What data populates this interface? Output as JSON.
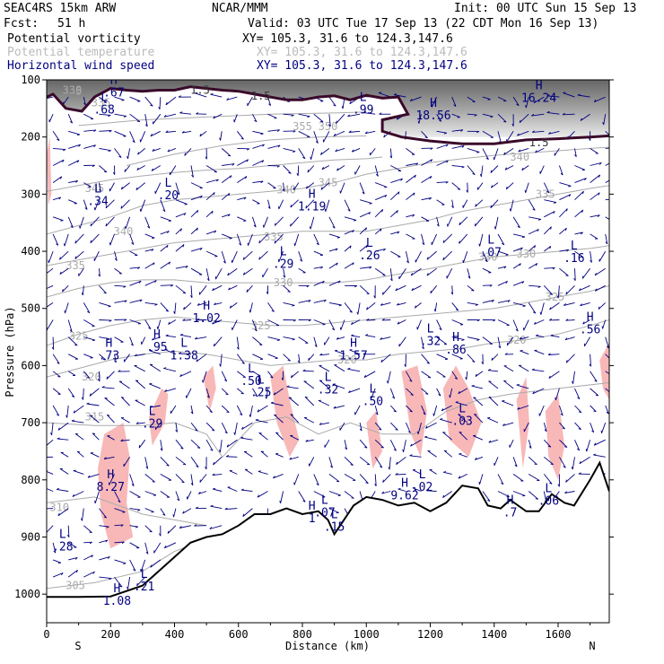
{
  "header": {
    "model": "SEAC4RS 15km ARW",
    "org": "NCAR/MMM",
    "init": "Init: 00 UTC Sun 15 Sep 13",
    "fcst_label": "Fcst:",
    "fcst_value": "51 h",
    "valid": "Valid: 03 UTC Tue 17 Sep 13 (22 CDT Mon 16 Sep 13)"
  },
  "legend": [
    {
      "name": "Potential vorticity",
      "xy": "XY= 105.3, 31.6 to 124.3,147.6",
      "color": "#000000"
    },
    {
      "name": "Potential temperature",
      "xy": "XY= 105.3, 31.6 to 124.3,147.6",
      "color": "#bbbbbb"
    },
    {
      "name": "Horizontal wind speed",
      "xy": "XY= 105.3, 31.6 to 124.3,147.6",
      "color": "#000080"
    }
  ],
  "chart_data": {
    "type": "cross-section",
    "xlabel": "Distance (km)",
    "ylabel": "Pressure (hPa)",
    "xlim": [
      0,
      1760
    ],
    "ylim": [
      1050,
      100
    ],
    "x_ticks": [
      0,
      200,
      400,
      600,
      800,
      1000,
      1200,
      1400,
      1600
    ],
    "y_ticks": [
      100,
      200,
      300,
      400,
      500,
      600,
      700,
      800,
      900,
      1000
    ],
    "end_labels": {
      "left": "S",
      "right": "N"
    },
    "terrain": [
      [
        0,
        1005
      ],
      [
        100,
        1005
      ],
      [
        200,
        1004
      ],
      [
        300,
        985
      ],
      [
        400,
        935
      ],
      [
        450,
        910
      ],
      [
        500,
        900
      ],
      [
        550,
        895
      ],
      [
        600,
        880
      ],
      [
        650,
        860
      ],
      [
        700,
        860
      ],
      [
        750,
        850
      ],
      [
        800,
        860
      ],
      [
        850,
        855
      ],
      [
        880,
        870
      ],
      [
        900,
        895
      ],
      [
        930,
        870
      ],
      [
        960,
        845
      ],
      [
        1000,
        830
      ],
      [
        1050,
        835
      ],
      [
        1100,
        845
      ],
      [
        1150,
        840
      ],
      [
        1200,
        855
      ],
      [
        1250,
        840
      ],
      [
        1300,
        810
      ],
      [
        1350,
        815
      ],
      [
        1380,
        845
      ],
      [
        1420,
        850
      ],
      [
        1450,
        835
      ],
      [
        1500,
        855
      ],
      [
        1540,
        855
      ],
      [
        1580,
        825
      ],
      [
        1620,
        840
      ],
      [
        1650,
        845
      ],
      [
        1700,
        800
      ],
      [
        1730,
        770
      ],
      [
        1760,
        820
      ]
    ],
    "pv_1_5_contour": [
      [
        0,
        130
      ],
      [
        20,
        125
      ],
      [
        60,
        150
      ],
      [
        110,
        155
      ],
      [
        150,
        130
      ],
      [
        200,
        115
      ],
      [
        250,
        118
      ],
      [
        300,
        120
      ],
      [
        350,
        118
      ],
      [
        400,
        118
      ],
      [
        450,
        112
      ],
      [
        500,
        115
      ],
      [
        550,
        118
      ],
      [
        600,
        120
      ],
      [
        650,
        125
      ],
      [
        700,
        130
      ],
      [
        750,
        135
      ],
      [
        800,
        135
      ],
      [
        850,
        130
      ],
      [
        900,
        128
      ],
      [
        950,
        135
      ],
      [
        1000,
        127
      ],
      [
        1050,
        132
      ],
      [
        1100,
        130
      ],
      [
        1130,
        160
      ],
      [
        1050,
        170
      ],
      [
        1050,
        190
      ],
      [
        1110,
        200
      ],
      [
        1200,
        207
      ],
      [
        1300,
        212
      ],
      [
        1400,
        212
      ],
      [
        1500,
        205
      ],
      [
        1600,
        203
      ],
      [
        1700,
        200
      ],
      [
        1760,
        198
      ]
    ],
    "pv_1_5_labels": [
      {
        "x": 480,
        "p": 118,
        "text": "1.5"
      },
      {
        "x": 670,
        "p": 128,
        "text": "1.5"
      },
      {
        "x": 1540,
        "p": 210,
        "text": "1.5"
      }
    ],
    "theta_contours": [
      {
        "value": 305,
        "points": [
          [
            0,
            990
          ],
          [
            150,
            980
          ],
          [
            300,
            960
          ],
          [
            400,
            925
          ],
          [
            450,
            915
          ]
        ]
      },
      {
        "value": 310,
        "points": [
          [
            0,
            840
          ],
          [
            150,
            830
          ],
          [
            300,
            860
          ],
          [
            400,
            870
          ],
          [
            500,
            880
          ]
        ]
      },
      {
        "value": 315,
        "points": [
          [
            0,
            700
          ],
          [
            150,
            705
          ],
          [
            300,
            705
          ],
          [
            400,
            700
          ],
          [
            500,
            720
          ],
          [
            550,
            760
          ],
          [
            650,
            700
          ],
          [
            750,
            690
          ],
          [
            850,
            720
          ],
          [
            950,
            700
          ],
          [
            1050,
            720
          ],
          [
            1150,
            720
          ],
          [
            1250,
            680
          ],
          [
            1350,
            660
          ],
          [
            1450,
            650
          ],
          [
            1600,
            640
          ],
          [
            1760,
            630
          ]
        ]
      },
      {
        "value": 320,
        "points": [
          [
            0,
            620
          ],
          [
            100,
            605
          ],
          [
            200,
            590
          ],
          [
            300,
            580
          ],
          [
            400,
            575
          ],
          [
            500,
            580
          ],
          [
            600,
            590
          ],
          [
            700,
            600
          ],
          [
            800,
            595
          ],
          [
            900,
            590
          ],
          [
            1000,
            590
          ],
          [
            1100,
            580
          ],
          [
            1200,
            575
          ],
          [
            1300,
            570
          ],
          [
            1400,
            560
          ],
          [
            1500,
            555
          ],
          [
            1600,
            545
          ],
          [
            1700,
            530
          ],
          [
            1760,
            520
          ]
        ]
      },
      {
        "value": 325,
        "points": [
          [
            0,
            565
          ],
          [
            100,
            545
          ],
          [
            200,
            530
          ],
          [
            300,
            520
          ],
          [
            400,
            515
          ],
          [
            500,
            520
          ],
          [
            600,
            525
          ],
          [
            700,
            530
          ],
          [
            800,
            530
          ],
          [
            900,
            525
          ],
          [
            1000,
            520
          ],
          [
            1100,
            515
          ],
          [
            1200,
            510
          ],
          [
            1300,
            505
          ],
          [
            1400,
            500
          ],
          [
            1500,
            490
          ],
          [
            1600,
            480
          ],
          [
            1700,
            470
          ],
          [
            1760,
            460
          ]
        ]
      },
      {
        "value": 330,
        "points": [
          [
            0,
            480
          ],
          [
            100,
            465
          ],
          [
            200,
            455
          ],
          [
            300,
            450
          ],
          [
            400,
            450
          ],
          [
            500,
            455
          ],
          [
            600,
            455
          ],
          [
            700,
            455
          ],
          [
            800,
            455
          ],
          [
            900,
            455
          ],
          [
            1000,
            450
          ],
          [
            1100,
            440
          ],
          [
            1200,
            430
          ],
          [
            1300,
            420
          ],
          [
            1400,
            410
          ],
          [
            1500,
            405
          ],
          [
            1600,
            400
          ],
          [
            1700,
            395
          ],
          [
            1760,
            390
          ]
        ]
      },
      {
        "value": 335,
        "points": [
          [
            0,
            425
          ],
          [
            100,
            415
          ],
          [
            200,
            405
          ],
          [
            300,
            395
          ],
          [
            400,
            385
          ],
          [
            500,
            380
          ],
          [
            600,
            375
          ],
          [
            700,
            370
          ],
          [
            800,
            365
          ],
          [
            900,
            365
          ],
          [
            1000,
            365
          ],
          [
            1100,
            355
          ],
          [
            1200,
            345
          ],
          [
            1300,
            330
          ],
          [
            1400,
            320
          ],
          [
            1500,
            310
          ],
          [
            1600,
            300
          ],
          [
            1700,
            290
          ],
          [
            1760,
            285
          ]
        ]
      },
      {
        "value": 340,
        "points": [
          [
            0,
            370
          ],
          [
            100,
            355
          ],
          [
            200,
            340
          ],
          [
            300,
            320
          ],
          [
            400,
            310
          ],
          [
            500,
            305
          ],
          [
            600,
            300
          ],
          [
            700,
            295
          ],
          [
            800,
            290
          ],
          [
            900,
            280
          ],
          [
            1000,
            265
          ],
          [
            1100,
            255
          ],
          [
            1200,
            245
          ],
          [
            1300,
            238
          ],
          [
            1400,
            232
          ],
          [
            1500,
            228
          ],
          [
            1600,
            224
          ],
          [
            1700,
            220
          ],
          [
            1760,
            218
          ]
        ]
      },
      {
        "value": 345,
        "points": [
          [
            0,
            295
          ],
          [
            100,
            285
          ],
          [
            200,
            275
          ],
          [
            300,
            268
          ],
          [
            400,
            262
          ],
          [
            500,
            258
          ],
          [
            600,
            255
          ],
          [
            700,
            250
          ],
          [
            800,
            245
          ],
          [
            900,
            240
          ],
          [
            1000,
            238
          ],
          [
            1050,
            235
          ]
        ]
      },
      {
        "value": 350,
        "points": [
          [
            250,
            250
          ],
          [
            400,
            230
          ],
          [
            550,
            215
          ],
          [
            700,
            205
          ],
          [
            850,
            200
          ],
          [
            1000,
            198
          ]
        ]
      },
      {
        "value": 355,
        "points": [
          [
            100,
            180
          ],
          [
            300,
            170
          ],
          [
            500,
            165
          ],
          [
            700,
            160
          ],
          [
            900,
            158
          ],
          [
            1000,
            156
          ]
        ]
      }
    ],
    "theta_labels": [
      {
        "x": 90,
        "p": 985,
        "text": "305"
      },
      {
        "x": 40,
        "p": 848,
        "text": "310"
      },
      {
        "x": 150,
        "p": 690,
        "text": "315"
      },
      {
        "x": 140,
        "p": 620,
        "text": "320"
      },
      {
        "x": 100,
        "p": 548,
        "text": "325"
      },
      {
        "x": 1590,
        "p": 480,
        "text": "325"
      },
      {
        "x": 1470,
        "p": 555,
        "text": "320"
      },
      {
        "x": 940,
        "p": 590,
        "text": "320"
      },
      {
        "x": 670,
        "p": 530,
        "text": "325"
      },
      {
        "x": 740,
        "p": 455,
        "text": "330"
      },
      {
        "x": 1380,
        "p": 410,
        "text": "330"
      },
      {
        "x": 1500,
        "p": 405,
        "text": "330"
      },
      {
        "x": 880,
        "p": 280,
        "text": "345"
      },
      {
        "x": 90,
        "p": 425,
        "text": "335"
      },
      {
        "x": 710,
        "p": 375,
        "text": "335"
      },
      {
        "x": 1560,
        "p": 300,
        "text": "335"
      },
      {
        "x": 240,
        "p": 365,
        "text": "340"
      },
      {
        "x": 750,
        "p": 292,
        "text": "340"
      },
      {
        "x": 1480,
        "p": 235,
        "text": "340"
      },
      {
        "x": 150,
        "p": 290,
        "text": "345"
      },
      {
        "x": 800,
        "p": 182,
        "text": "355"
      },
      {
        "x": 880,
        "p": 182,
        "text": "350"
      },
      {
        "x": 170,
        "p": 140,
        "text": "335"
      },
      {
        "x": 100,
        "p": 120,
        "text": "5"
      },
      {
        "x": 80,
        "p": 118,
        "text": "330"
      }
    ],
    "hl_markers": [
      {
        "type": "H",
        "x": 210,
        "p": 110,
        "value": ".67"
      },
      {
        "type": "L",
        "x": 180,
        "p": 140,
        "value": ".68"
      },
      {
        "type": "L",
        "x": 160,
        "p": 300,
        "value": ".34"
      },
      {
        "type": "L",
        "x": 380,
        "p": 290,
        "value": ".20"
      },
      {
        "type": "H",
        "x": 830,
        "p": 310,
        "value": "1.19"
      },
      {
        "type": "L",
        "x": 990,
        "p": 140,
        "value": ".99"
      },
      {
        "type": "H",
        "x": 1210,
        "p": 150,
        "value": "18.56"
      },
      {
        "type": "H",
        "x": 1540,
        "p": 120,
        "value": "16.24"
      },
      {
        "type": "L",
        "x": 740,
        "p": 410,
        "value": ".29"
      },
      {
        "type": "L",
        "x": 1010,
        "p": 395,
        "value": ".26"
      },
      {
        "type": "L",
        "x": 1390,
        "p": 390,
        "value": ".07"
      },
      {
        "type": "L",
        "x": 1650,
        "p": 400,
        "value": ".16"
      },
      {
        "type": "H",
        "x": 500,
        "p": 505,
        "value": "1.02"
      },
      {
        "type": "H",
        "x": 195,
        "p": 570,
        "value": ".73"
      },
      {
        "type": "H",
        "x": 345,
        "p": 555,
        "value": ".95"
      },
      {
        "type": "L",
        "x": 430,
        "p": 570,
        "value": "1.38"
      },
      {
        "type": "H",
        "x": 960,
        "p": 570,
        "value": "1.57"
      },
      {
        "type": "L",
        "x": 1200,
        "p": 545,
        "value": ".32"
      },
      {
        "type": "H",
        "x": 1280,
        "p": 560,
        "value": ".86"
      },
      {
        "type": "H",
        "x": 1700,
        "p": 525,
        "value": ".56"
      },
      {
        "type": "L",
        "x": 640,
        "p": 615,
        "value": ".50"
      },
      {
        "type": "L",
        "x": 670,
        "p": 635,
        "value": ".25"
      },
      {
        "type": "L",
        "x": 880,
        "p": 630,
        "value": ".32"
      },
      {
        "type": "L",
        "x": 1020,
        "p": 650,
        "value": ".50"
      },
      {
        "type": "L",
        "x": 330,
        "p": 690,
        "value": ".29"
      },
      {
        "type": "L",
        "x": 1300,
        "p": 685,
        "value": ".03"
      },
      {
        "type": "H",
        "x": 200,
        "p": 800,
        "value": "8.27"
      },
      {
        "type": "H",
        "x": 1120,
        "p": 815,
        "value": "9.62"
      },
      {
        "type": "L",
        "x": 1175,
        "p": 800,
        "value": ".02"
      },
      {
        "type": "H",
        "x": 830,
        "p": 855,
        "value": "1"
      },
      {
        "type": "L",
        "x": 870,
        "p": 845,
        "value": ".07"
      },
      {
        "type": "L",
        "x": 900,
        "p": 870,
        "value": ".15"
      },
      {
        "type": "H",
        "x": 1450,
        "p": 845,
        "value": ".7"
      },
      {
        "type": "L",
        "x": 1570,
        "p": 825,
        "value": ".06"
      },
      {
        "type": "L",
        "x": 50,
        "p": 905,
        "value": ".28"
      },
      {
        "type": "H",
        "x": 220,
        "p": 1000,
        "value": "1.08"
      },
      {
        "type": "L",
        "x": 305,
        "p": 975,
        "value": ".21"
      }
    ],
    "colors": {
      "pv_contour": "#3a0a2a",
      "pv_shading_dark": "#555555",
      "pv_shading_light": "#d8d8d8",
      "theta": "#aaaaaa",
      "wind": "#000080",
      "pink": "#f8b8b8",
      "terrain": "#000000"
    }
  }
}
